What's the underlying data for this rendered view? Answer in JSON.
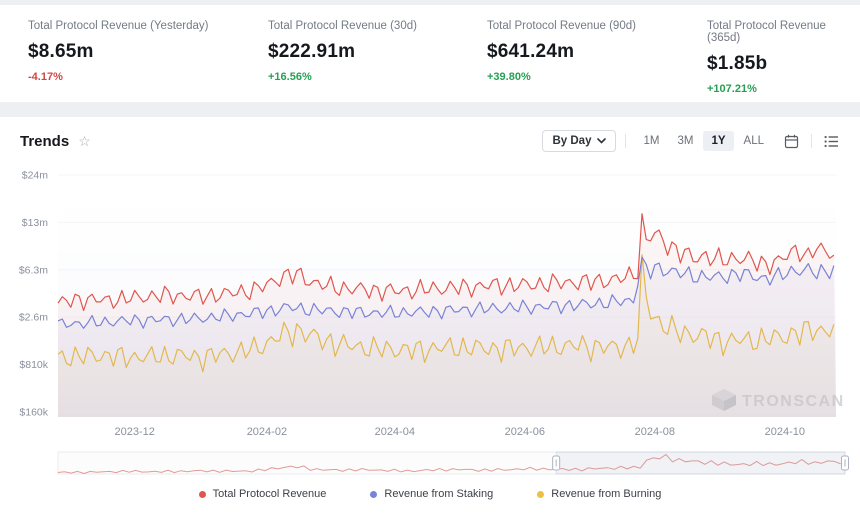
{
  "stats": {
    "colors": {
      "up": "#27a054",
      "down": "#d24545"
    },
    "cards": [
      {
        "label": "Total Protocol Revenue (Yesterday)",
        "value": "$8.65m",
        "delta": "-4.17%",
        "direction": "down"
      },
      {
        "label": "Total Protocol Revenue (30d)",
        "value": "$222.91m",
        "delta": "+16.56%",
        "direction": "up"
      },
      {
        "label": "Total Protocol Revenue (90d)",
        "value": "$641.24m",
        "delta": "+39.80%",
        "direction": "up"
      },
      {
        "label": "Total Protocol Revenue (365d)",
        "value": "$1.85b",
        "delta": "+107.21%",
        "direction": "up"
      }
    ]
  },
  "trends": {
    "title": "Trends",
    "watermark": "TRONSCAN",
    "controls": {
      "group_by": "By Day",
      "ranges": [
        "1M",
        "3M",
        "1Y",
        "ALL"
      ],
      "active_range": "1Y"
    }
  },
  "chart_data": {
    "type": "line",
    "title": "Trends",
    "y_scale": "fourth-root",
    "y_tick_labels": [
      "$24m",
      "$13m",
      "$6.3m",
      "$2.6m",
      "$810k",
      "$160k"
    ],
    "y_tick_values_musd": [
      24,
      13,
      6.3,
      2.6,
      0.81,
      0.16
    ],
    "x_tick_labels": [
      "2023-12",
      "2024-02",
      "2024-04",
      "2024-06",
      "2024-08",
      "2024-10"
    ],
    "x_tick_days": [
      36,
      98,
      158,
      219,
      280,
      341
    ],
    "x_range_days": [
      0,
      365
    ],
    "grid": false,
    "legend_position": "bottom",
    "navigator": {
      "window_start_frac": 0.633,
      "window_end_frac": 1.0
    },
    "series": [
      {
        "name": "Total Protocol Revenue",
        "color": "#df564e",
        "weekly_amplitude": 0.13,
        "noise": 0.05,
        "phase": 0,
        "trend_musd": [
          [
            0,
            3.4
          ],
          [
            10,
            3.7
          ],
          [
            22,
            3.6
          ],
          [
            36,
            3.8
          ],
          [
            50,
            4.0
          ],
          [
            67,
            3.9
          ],
          [
            80,
            4.1
          ],
          [
            92,
            4.4
          ],
          [
            98,
            4.8
          ],
          [
            105,
            5.6
          ],
          [
            112,
            5.8
          ],
          [
            120,
            5.0
          ],
          [
            130,
            4.6
          ],
          [
            145,
            4.4
          ],
          [
            160,
            4.3
          ],
          [
            175,
            4.5
          ],
          [
            190,
            4.6
          ],
          [
            205,
            4.8
          ],
          [
            220,
            4.8
          ],
          [
            235,
            5.0
          ],
          [
            250,
            5.1
          ],
          [
            262,
            5.3
          ],
          [
            268,
            5.6
          ],
          [
            272,
            6.3
          ],
          [
            274,
            13.0
          ],
          [
            276,
            10.0
          ],
          [
            279,
            11.0
          ],
          [
            283,
            10.3
          ],
          [
            288,
            9.0
          ],
          [
            293,
            8.2
          ],
          [
            298,
            7.6
          ],
          [
            304,
            7.9
          ],
          [
            311,
            7.3
          ],
          [
            320,
            7.7
          ],
          [
            330,
            6.9
          ],
          [
            338,
            7.2
          ],
          [
            344,
            8.2
          ],
          [
            348,
            8.8
          ],
          [
            352,
            7.7
          ],
          [
            356,
            9.0
          ],
          [
            360,
            8.2
          ],
          [
            365,
            8.7
          ]
        ]
      },
      {
        "name": "Revenue from Staking",
        "color": "#7585dd",
        "weekly_amplitude": 0.11,
        "noise": 0.04,
        "phase": 0.2,
        "trend_musd": [
          [
            0,
            2.2
          ],
          [
            20,
            2.3
          ],
          [
            36,
            2.4
          ],
          [
            55,
            2.45
          ],
          [
            67,
            2.5
          ],
          [
            85,
            2.7
          ],
          [
            98,
            2.9
          ],
          [
            108,
            3.15
          ],
          [
            118,
            3.0
          ],
          [
            130,
            2.9
          ],
          [
            150,
            2.8
          ],
          [
            170,
            2.85
          ],
          [
            190,
            3.0
          ],
          [
            210,
            3.1
          ],
          [
            230,
            3.2
          ],
          [
            250,
            3.35
          ],
          [
            262,
            3.5
          ],
          [
            270,
            3.6
          ],
          [
            274,
            7.0
          ],
          [
            277,
            6.0
          ],
          [
            281,
            6.5
          ],
          [
            286,
            6.2
          ],
          [
            292,
            5.9
          ],
          [
            300,
            5.6
          ],
          [
            310,
            5.5
          ],
          [
            320,
            5.9
          ],
          [
            330,
            5.4
          ],
          [
            338,
            5.6
          ],
          [
            344,
            6.1
          ],
          [
            350,
            6.3
          ],
          [
            356,
            5.9
          ],
          [
            361,
            6.2
          ],
          [
            365,
            6.5
          ]
        ]
      },
      {
        "name": "Revenue from Burning",
        "color": "#e9c148",
        "weekly_amplitude": 0.22,
        "noise": 0.09,
        "phase": 0.5,
        "trend_musd": [
          [
            0,
            1.0
          ],
          [
            20,
            1.05
          ],
          [
            36,
            1.0
          ],
          [
            55,
            1.05
          ],
          [
            67,
            1.0
          ],
          [
            85,
            1.15
          ],
          [
            95,
            1.3
          ],
          [
            104,
            1.7
          ],
          [
            112,
            1.95
          ],
          [
            122,
            1.6
          ],
          [
            135,
            1.35
          ],
          [
            150,
            1.25
          ],
          [
            165,
            1.2
          ],
          [
            185,
            1.3
          ],
          [
            205,
            1.25
          ],
          [
            225,
            1.3
          ],
          [
            245,
            1.35
          ],
          [
            260,
            1.28
          ],
          [
            268,
            1.35
          ],
          [
            272,
            1.6
          ],
          [
            274,
            6.2
          ],
          [
            277,
            3.0
          ],
          [
            281,
            2.4
          ],
          [
            287,
            2.0
          ],
          [
            295,
            1.8
          ],
          [
            305,
            1.65
          ],
          [
            313,
            1.5
          ],
          [
            325,
            1.55
          ],
          [
            335,
            1.6
          ],
          [
            341,
            1.7
          ],
          [
            348,
            1.85
          ],
          [
            355,
            2.0
          ],
          [
            360,
            1.9
          ],
          [
            365,
            2.1
          ]
        ]
      }
    ]
  }
}
